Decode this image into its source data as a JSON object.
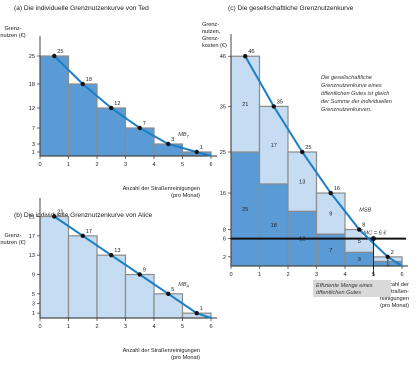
{
  "chart_data": [
    {
      "type": "bar",
      "title": "(a) Die individuelle Grenznutzenkurve von Ted",
      "ylabel": [
        "Grenz-",
        "nutzen (€)"
      ],
      "xlabel": [
        "Anzahl der Straßenreinigungen",
        "(pro Monat)"
      ],
      "x_ticks": [
        "0",
        "1",
        "2",
        "3",
        "4",
        "5",
        "6"
      ],
      "y_ticks": [
        1,
        3,
        7,
        12,
        18,
        25
      ],
      "ylim": [
        0,
        29
      ],
      "xlim": [
        0,
        6
      ],
      "values": [
        25,
        18,
        12,
        7,
        3,
        1
      ],
      "curve": {
        "name": "MB_T",
        "label_base": "MB",
        "label_sub": "T",
        "x": [
          0.5,
          1.5,
          2.5,
          3.5,
          4.5,
          5.5,
          6
        ],
        "y": [
          25,
          18,
          12,
          7,
          3,
          1,
          0
        ]
      },
      "point_labels": [
        "25",
        "18",
        "12",
        "7",
        "3",
        "1"
      ],
      "bar_color": "#5b9bd5",
      "curve_color": "#1a7fc4"
    },
    {
      "type": "bar",
      "title": "(b) Die individuelle Grenznutzenkurve von Alice",
      "ylabel": [
        "Grenz-",
        "nutzen (€)"
      ],
      "xlabel": [
        "Anzahl der Straßenreinigungen",
        "(pro Monat)"
      ],
      "x_ticks": [
        "0",
        "1",
        "2",
        "3",
        "4",
        "5",
        "6"
      ],
      "y_ticks": [
        1,
        3,
        5,
        9,
        13,
        17,
        21
      ],
      "ylim": [
        0,
        24
      ],
      "xlim": [
        0,
        6
      ],
      "values": [
        21,
        17,
        13,
        9,
        5,
        1
      ],
      "curve": {
        "name": "MB_A",
        "label_base": "MB",
        "label_sub": "A",
        "x": [
          0.5,
          1.5,
          2.5,
          3.5,
          4.5,
          5.5,
          6
        ],
        "y": [
          21,
          17,
          13,
          9,
          5,
          1,
          0
        ]
      },
      "point_labels": [
        "21",
        "17",
        "13",
        "9",
        "5",
        "1"
      ],
      "bar_color": "#c5dcf2",
      "curve_color": "#1a7fc4"
    },
    {
      "type": "bar",
      "stacked": true,
      "title": "(c) Die gesellschaftliche Grenznutzenkurve",
      "ylabel": [
        "Grenz-",
        "nutzen,",
        "Grenz-",
        "kosten (€)"
      ],
      "xlabel": [
        "Anzahl der",
        "Straßen-",
        "reinigungen",
        "(pro Monat)"
      ],
      "x_ticks": [
        "0",
        "1",
        "2",
        "3",
        "4",
        "5",
        "6"
      ],
      "y_ticks": [
        2,
        6,
        8,
        16,
        25,
        35,
        46
      ],
      "ylim": [
        0,
        50
      ],
      "xlim": [
        0,
        6
      ],
      "series": [
        {
          "name": "Ted",
          "values": [
            25,
            18,
            12,
            7,
            3,
            1
          ],
          "color": "#5b9bd5"
        },
        {
          "name": "Alice",
          "values": [
            21,
            17,
            13,
            9,
            5,
            1
          ],
          "color": "#c5dcf2"
        }
      ],
      "curve": {
        "name": "MSB",
        "x": [
          0.5,
          1.5,
          2.5,
          3.5,
          4.5,
          5.5,
          6
        ],
        "y": [
          46,
          35,
          25,
          16,
          8,
          2,
          0
        ]
      },
      "point_labels": [
        "46",
        "35",
        "25",
        "16",
        "8",
        "2"
      ],
      "mc": {
        "value": 6,
        "label": "MC = 6 €"
      },
      "annotation": [
        "Die gesellschaftliche",
        "Grenznutzenkurve eines",
        "öffentlichen Gutes ist gleich",
        "der Summe der individuellen",
        "Grenznutzenkurven."
      ],
      "efficient_note": [
        "Effiziente Menge eines",
        "öffentlichen Gutes"
      ],
      "efficient_x": 5,
      "curve_color": "#1a7fc4"
    }
  ]
}
